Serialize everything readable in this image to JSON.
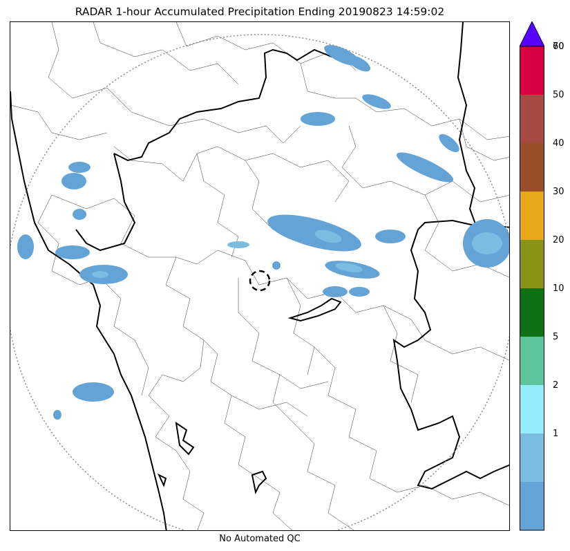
{
  "title": "RADAR 1-hour Accumulated Precipitation Ending 20190823 14:59:02",
  "footer": "No Automated QC",
  "colorbar": {
    "extend": "max",
    "extend_color": "#5500ff",
    "bins": [
      {
        "label": "",
        "color": "#64a3d6"
      },
      {
        "label": "1",
        "color": "#79bde1"
      },
      {
        "label": "2",
        "color": "#94ecff"
      },
      {
        "label": "5",
        "color": "#5ec49c"
      },
      {
        "label": "10",
        "color": "#0e7214"
      },
      {
        "label": "20",
        "color": "#8b9316"
      },
      {
        "label": "30",
        "color": "#e8a81c"
      },
      {
        "label": "40",
        "color": "#9a4f28"
      },
      {
        "label": "50",
        "color": "#a84a44"
      },
      {
        "label": "60",
        "color": "#d80040"
      }
    ],
    "top_label": "70"
  },
  "map": {
    "precip_color": "#64a3d6",
    "precip_light_color": "#79bde1",
    "range_ring": "dotted",
    "radar_site_marker": "dashed-circle"
  }
}
